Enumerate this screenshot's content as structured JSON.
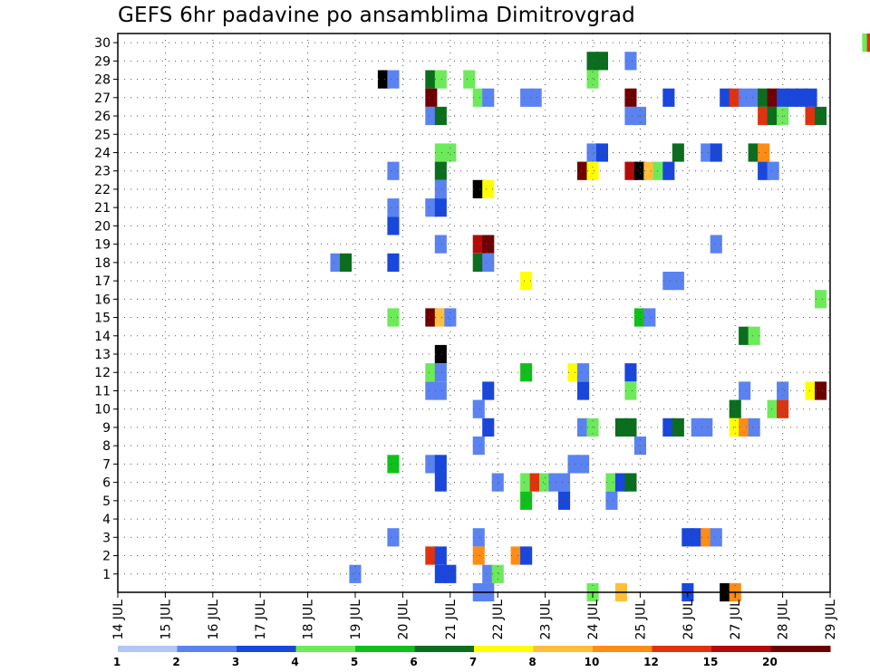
{
  "chart_data": {
    "type": "heatmap",
    "title": "GEFS 6hr padavine po ansamblima Dimitrovgrad",
    "xlabel": "",
    "ylabel": "",
    "x_ticks": [
      {
        "label": "14 JUL",
        "day": 14
      },
      {
        "label": "15 JUL",
        "day": 15
      },
      {
        "label": "16 JUL",
        "day": 16
      },
      {
        "label": "17 JUL",
        "day": 17
      },
      {
        "label": "18 JUL",
        "day": 18
      },
      {
        "label": "19 JUL",
        "day": 19
      },
      {
        "label": "20 JUL",
        "day": 20
      },
      {
        "label": "21 JUL",
        "day": 21
      },
      {
        "label": "22 JUL",
        "day": 22
      },
      {
        "label": "23 JUL",
        "day": 23
      },
      {
        "label": "24 JUL",
        "day": 24
      },
      {
        "label": "25 JUL",
        "day": 25
      },
      {
        "label": "26 JUL",
        "day": 26
      },
      {
        "label": "27 JUL",
        "day": 27
      },
      {
        "label": "28 JUL",
        "day": 28
      },
      {
        "label": "29 JUL",
        "day": 29
      }
    ],
    "xlim_days": [
      14,
      29
    ],
    "y_ticks": [
      1,
      2,
      3,
      4,
      5,
      6,
      7,
      8,
      9,
      10,
      11,
      12,
      13,
      14,
      15,
      16,
      17,
      18,
      19,
      20,
      21,
      22,
      23,
      24,
      25,
      26,
      27,
      28,
      29,
      30
    ],
    "ylim": [
      0,
      30
    ],
    "grid": true,
    "legend": {
      "placement": "bottom",
      "labels": [
        "1",
        "2",
        "3",
        "4",
        "5",
        "6",
        "7",
        "8",
        "10",
        "12",
        "15",
        "20"
      ],
      "colors": [
        "#b3c6f5",
        "#5a82f0",
        "#1947dc",
        "#6cea5a",
        "#10c01a",
        "#0a6e1e",
        "#ffff00",
        "#ffbe3c",
        "#ff8c14",
        "#e1320f",
        "#b40a0a",
        "#6e0000"
      ]
    },
    "cells": [
      [
        29.8,
        30,
        3
      ],
      [
        29.9,
        30,
        9
      ],
      [
        24.0,
        29,
        5
      ],
      [
        24.2,
        29,
        5
      ],
      [
        24.8,
        29,
        1
      ],
      [
        19.6,
        28,
        12
      ],
      [
        19.8,
        28,
        1
      ],
      [
        20.6,
        28,
        5
      ],
      [
        20.8,
        28,
        3
      ],
      [
        21.4,
        28,
        3
      ],
      [
        24.0,
        28,
        3
      ],
      [
        20.6,
        27,
        11
      ],
      [
        21.6,
        27,
        3
      ],
      [
        21.8,
        27,
        1
      ],
      [
        22.6,
        27,
        1
      ],
      [
        22.8,
        27,
        1
      ],
      [
        24.8,
        27,
        11
      ],
      [
        25.6,
        27,
        2
      ],
      [
        26.8,
        27,
        2
      ],
      [
        27.0,
        27,
        9
      ],
      [
        27.2,
        27,
        1
      ],
      [
        27.4,
        27,
        1
      ],
      [
        27.6,
        27,
        5
      ],
      [
        27.8,
        27,
        11
      ],
      [
        28.0,
        27,
        2
      ],
      [
        28.2,
        27,
        2
      ],
      [
        28.4,
        27,
        2
      ],
      [
        28.6,
        27,
        2
      ],
      [
        20.6,
        26,
        1
      ],
      [
        20.8,
        26,
        5
      ],
      [
        24.8,
        26,
        1
      ],
      [
        25.0,
        26,
        1
      ],
      [
        27.6,
        26,
        9
      ],
      [
        27.8,
        26,
        5
      ],
      [
        28.0,
        26,
        3
      ],
      [
        28.6,
        26,
        9
      ],
      [
        28.8,
        26,
        5
      ],
      [
        20.8,
        24,
        3
      ],
      [
        21.0,
        24,
        3
      ],
      [
        24.0,
        24,
        1
      ],
      [
        24.2,
        24,
        2
      ],
      [
        25.8,
        24,
        5
      ],
      [
        26.4,
        24,
        1
      ],
      [
        26.6,
        24,
        2
      ],
      [
        27.4,
        24,
        5
      ],
      [
        27.6,
        24,
        8
      ],
      [
        19.8,
        23,
        1
      ],
      [
        20.8,
        23,
        5
      ],
      [
        23.8,
        23,
        11
      ],
      [
        24.0,
        23,
        6
      ],
      [
        24.8,
        23,
        10
      ],
      [
        25.0,
        23,
        12
      ],
      [
        25.2,
        23,
        7
      ],
      [
        25.4,
        23,
        3
      ],
      [
        25.6,
        23,
        2
      ],
      [
        27.6,
        23,
        2
      ],
      [
        27.8,
        23,
        1
      ],
      [
        20.8,
        22,
        1
      ],
      [
        21.6,
        22,
        12
      ],
      [
        21.8,
        22,
        6
      ],
      [
        19.8,
        21,
        1
      ],
      [
        20.6,
        21,
        1
      ],
      [
        20.8,
        21,
        2
      ],
      [
        19.8,
        20,
        2
      ],
      [
        26.6,
        19,
        1
      ],
      [
        20.8,
        19,
        1
      ],
      [
        21.6,
        19,
        10
      ],
      [
        21.8,
        19,
        11
      ],
      [
        18.6,
        18,
        1
      ],
      [
        18.8,
        18,
        5
      ],
      [
        19.8,
        18,
        2
      ],
      [
        21.6,
        18,
        5
      ],
      [
        21.8,
        18,
        1
      ],
      [
        22.6,
        17,
        6
      ],
      [
        25.6,
        17,
        1
      ],
      [
        25.8,
        17,
        1
      ],
      [
        28.8,
        16,
        3
      ],
      [
        19.8,
        15,
        3
      ],
      [
        20.6,
        15,
        11
      ],
      [
        20.8,
        15,
        7
      ],
      [
        21.0,
        15,
        1
      ],
      [
        25.0,
        15,
        4
      ],
      [
        25.2,
        15,
        1
      ],
      [
        27.2,
        14,
        5
      ],
      [
        27.4,
        14,
        3
      ],
      [
        20.8,
        13,
        12
      ],
      [
        20.6,
        12,
        3
      ],
      [
        20.8,
        12,
        1
      ],
      [
        22.6,
        12,
        4
      ],
      [
        23.6,
        12,
        6
      ],
      [
        23.8,
        12,
        1
      ],
      [
        24.8,
        12,
        2
      ],
      [
        20.6,
        11,
        1
      ],
      [
        20.8,
        11,
        1
      ],
      [
        21.8,
        11,
        2
      ],
      [
        23.8,
        11,
        2
      ],
      [
        24.8,
        11,
        3
      ],
      [
        27.2,
        11,
        1
      ],
      [
        28.0,
        11,
        1
      ],
      [
        28.6,
        11,
        6
      ],
      [
        28.8,
        11,
        11
      ],
      [
        21.6,
        10,
        1
      ],
      [
        27.0,
        10,
        5
      ],
      [
        27.8,
        10,
        3
      ],
      [
        28.0,
        10,
        9
      ],
      [
        21.8,
        9,
        2
      ],
      [
        23.8,
        9,
        1
      ],
      [
        24.0,
        9,
        3
      ],
      [
        24.6,
        9,
        5
      ],
      [
        24.8,
        9,
        5
      ],
      [
        25.6,
        9,
        2
      ],
      [
        25.8,
        9,
        5
      ],
      [
        26.2,
        9,
        1
      ],
      [
        26.4,
        9,
        1
      ],
      [
        27.0,
        9,
        6
      ],
      [
        27.2,
        9,
        8
      ],
      [
        27.4,
        9,
        1
      ],
      [
        21.6,
        8,
        1
      ],
      [
        25.0,
        8,
        1
      ],
      [
        19.8,
        7,
        4
      ],
      [
        20.6,
        7,
        1
      ],
      [
        20.8,
        7,
        2
      ],
      [
        23.6,
        7,
        1
      ],
      [
        23.8,
        7,
        1
      ],
      [
        20.8,
        6,
        2
      ],
      [
        22.0,
        6,
        1
      ],
      [
        22.6,
        6,
        3
      ],
      [
        22.8,
        6,
        9
      ],
      [
        23.0,
        6,
        3
      ],
      [
        23.2,
        6,
        1
      ],
      [
        23.4,
        6,
        1
      ],
      [
        24.4,
        6,
        3
      ],
      [
        24.6,
        6,
        2
      ],
      [
        24.8,
        6,
        5
      ],
      [
        22.6,
        5,
        4
      ],
      [
        23.4,
        5,
        2
      ],
      [
        24.4,
        5,
        1
      ],
      [
        19.8,
        3,
        1
      ],
      [
        21.6,
        3,
        1
      ],
      [
        26.0,
        3,
        2
      ],
      [
        26.2,
        3,
        2
      ],
      [
        26.4,
        3,
        8
      ],
      [
        26.6,
        3,
        1
      ],
      [
        20.6,
        2,
        9
      ],
      [
        20.8,
        2,
        2
      ],
      [
        21.6,
        2,
        8
      ],
      [
        22.4,
        2,
        8
      ],
      [
        22.6,
        2,
        2
      ],
      [
        19.0,
        1,
        1
      ],
      [
        20.8,
        1,
        2
      ],
      [
        21.0,
        1,
        2
      ],
      [
        21.8,
        1,
        1
      ],
      [
        22.0,
        1,
        3
      ],
      [
        21.6,
        0,
        1
      ],
      [
        21.8,
        0,
        1
      ],
      [
        24.0,
        0,
        3
      ],
      [
        24.6,
        0,
        7
      ],
      [
        26.0,
        0,
        2
      ],
      [
        26.8,
        0,
        12
      ],
      [
        27.0,
        0,
        8
      ]
    ]
  }
}
